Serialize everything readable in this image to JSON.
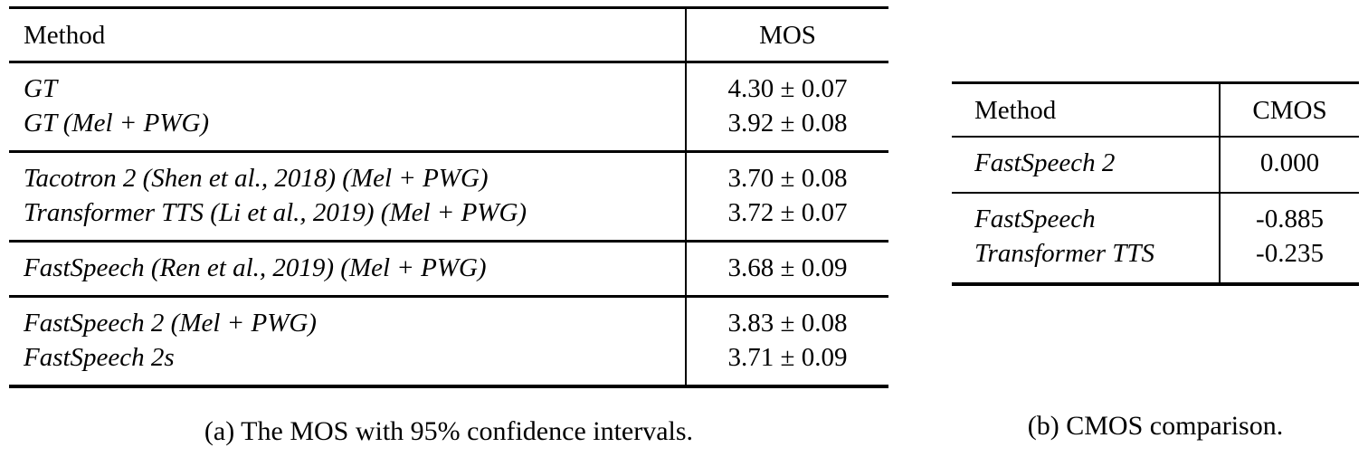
{
  "table_a": {
    "caption": "(a) The MOS with 95% confidence intervals.",
    "headers": {
      "method": "Method",
      "value": "MOS"
    },
    "groups": [
      {
        "rows": [
          {
            "method": "GT",
            "value": "4.30 ± 0.07"
          },
          {
            "method": "GT (Mel + PWG)",
            "value": "3.92 ± 0.08"
          }
        ]
      },
      {
        "rows": [
          {
            "method": "Tacotron 2 (Shen et al., 2018) (Mel + PWG)",
            "value": "3.70 ± 0.08"
          },
          {
            "method": "Transformer TTS (Li et al., 2019) (Mel + PWG)",
            "value": "3.72 ± 0.07"
          }
        ]
      },
      {
        "rows": [
          {
            "method": "FastSpeech (Ren et al., 2019) (Mel + PWG)",
            "value": "3.68 ± 0.09"
          }
        ]
      },
      {
        "rows": [
          {
            "method": "FastSpeech 2 (Mel + PWG)",
            "value": "3.83 ± 0.08"
          },
          {
            "method": "FastSpeech 2s",
            "value": "3.71 ± 0.09"
          }
        ]
      }
    ]
  },
  "table_b": {
    "caption": "(b) CMOS comparison.",
    "headers": {
      "method": "Method",
      "value": "CMOS"
    },
    "groups": [
      {
        "rows": [
          {
            "method": "FastSpeech 2",
            "value": "0.000"
          }
        ]
      },
      {
        "rows": [
          {
            "method": "FastSpeech",
            "value": "-0.885"
          },
          {
            "method": "Transformer TTS",
            "value": "-0.235"
          }
        ]
      }
    ]
  }
}
